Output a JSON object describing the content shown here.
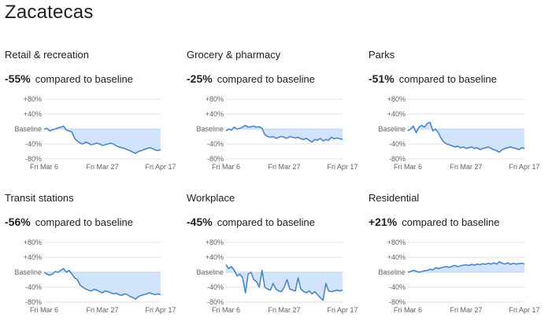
{
  "page_title": "Zacatecas",
  "compare_text": "compared to baseline",
  "colors": {
    "line": "#4a86c8",
    "fill": "#d2e3fc",
    "grid": "#e0e0e0",
    "text": "#202124",
    "axis_text": "#5f6368"
  },
  "chart_data": [
    {
      "type": "area",
      "title": "Retail & recreation",
      "change": "-55%",
      "ytick_labels": [
        "+80%",
        "+40%",
        "Baseline",
        "-40%",
        "-80%"
      ],
      "ylim": [
        -80,
        80
      ],
      "xtick_labels": [
        "Fri Mar 6",
        "Fri Mar 27",
        "Fri Apr 17"
      ],
      "xlim": [
        0,
        42
      ],
      "series": [
        {
          "values": [
            0,
            2,
            -5,
            -2,
            0,
            3,
            5,
            8,
            -3,
            -5,
            -8,
            -25,
            -32,
            -38,
            -40,
            -35,
            -38,
            -42,
            -40,
            -38,
            -40,
            -44,
            -42,
            -40,
            -38,
            -40,
            -45,
            -48,
            -50,
            -52,
            -55,
            -58,
            -62,
            -65,
            -60,
            -58,
            -55,
            -52,
            -50,
            -52,
            -56,
            -58,
            -55
          ]
        }
      ]
    },
    {
      "type": "area",
      "title": "Grocery & pharmacy",
      "change": "-25%",
      "ytick_labels": [
        "+80%",
        "+40%",
        "Baseline",
        "-40%",
        "-80%"
      ],
      "ylim": [
        -80,
        80
      ],
      "xtick_labels": [
        "Fri Mar 6",
        "Fri Mar 27",
        "Fri Apr 17"
      ],
      "xlim": [
        0,
        42
      ],
      "series": [
        {
          "values": [
            -5,
            0,
            -3,
            5,
            0,
            2,
            5,
            10,
            5,
            6,
            8,
            5,
            6,
            2,
            -15,
            -20,
            -22,
            -20,
            -25,
            -22,
            -20,
            -22,
            -25,
            -20,
            -22,
            -24,
            -22,
            -26,
            -28,
            -25,
            -30,
            -35,
            -28,
            -30,
            -25,
            -32,
            -28,
            -30,
            -22,
            -26,
            -24,
            -26,
            -28
          ]
        }
      ]
    },
    {
      "type": "area",
      "title": "Parks",
      "change": "-51%",
      "ytick_labels": [
        "+80%",
        "+40%",
        "Baseline",
        "-40%",
        "-80%"
      ],
      "ylim": [
        -80,
        80
      ],
      "xtick_labels": [
        "Fri Mar 6",
        "Fri Mar 27",
        "Fri Apr 17"
      ],
      "xlim": [
        0,
        42
      ],
      "series": [
        {
          "values": [
            -5,
            0,
            8,
            -10,
            5,
            10,
            5,
            15,
            18,
            -5,
            0,
            -10,
            -25,
            -35,
            -40,
            -42,
            -45,
            -48,
            -46,
            -50,
            -48,
            -52,
            -50,
            -48,
            -52,
            -50,
            -55,
            -52,
            -50,
            -48,
            -52,
            -55,
            -58,
            -62,
            -55,
            -52,
            -50,
            -48,
            -50,
            -52,
            -55,
            -50,
            -52
          ]
        }
      ]
    },
    {
      "type": "area",
      "title": "Transit stations",
      "change": "-56%",
      "ytick_labels": [
        "+80%",
        "+40%",
        "Baseline",
        "-40%",
        "-80%"
      ],
      "ylim": [
        -80,
        80
      ],
      "xtick_labels": [
        "Fri Mar 6",
        "Fri Mar 27",
        "Fri Apr 17"
      ],
      "xlim": [
        0,
        42
      ],
      "series": [
        {
          "values": [
            0,
            -5,
            -8,
            -5,
            2,
            0,
            5,
            10,
            0,
            5,
            -5,
            -15,
            -20,
            -35,
            -40,
            -45,
            -48,
            -50,
            -46,
            -48,
            -52,
            -55,
            -50,
            -52,
            -55,
            -58,
            -56,
            -60,
            -62,
            -58,
            -60,
            -65,
            -68,
            -72,
            -65,
            -62,
            -60,
            -58,
            -55,
            -58,
            -60,
            -58,
            -60
          ]
        }
      ]
    },
    {
      "type": "area",
      "title": "Workplace",
      "change": "-45%",
      "ytick_labels": [
        "+80%",
        "+40%",
        "Baseline",
        "-40%",
        "-80%"
      ],
      "ylim": [
        -80,
        80
      ],
      "xtick_labels": [
        "Fri Mar 6",
        "Fri Mar 27",
        "Fri Apr 17"
      ],
      "xlim": [
        0,
        42
      ],
      "series": [
        {
          "values": [
            20,
            10,
            15,
            5,
            -10,
            -5,
            -15,
            -55,
            -5,
            0,
            -20,
            -25,
            -40,
            5,
            -40,
            -45,
            -48,
            -30,
            -45,
            -50,
            -52,
            -40,
            -20,
            -45,
            -48,
            -50,
            -15,
            -45,
            -52,
            -55,
            -50,
            -58,
            -52,
            -60,
            -68,
            -75,
            -30,
            -50,
            -52,
            -50,
            -48,
            -50,
            -48
          ]
        }
      ]
    },
    {
      "type": "area",
      "title": "Residential",
      "change": "+21%",
      "ytick_labels": [
        "+80%",
        "+40%",
        "Baseline",
        "-40%",
        "-80%"
      ],
      "ylim": [
        -80,
        80
      ],
      "xtick_labels": [
        "Fri Mar 6",
        "Fri Mar 27",
        "Fri Apr 17"
      ],
      "xlim": [
        0,
        42
      ],
      "series": [
        {
          "values": [
            0,
            2,
            5,
            3,
            0,
            2,
            4,
            5,
            8,
            6,
            12,
            10,
            12,
            14,
            15,
            13,
            16,
            18,
            15,
            17,
            19,
            20,
            18,
            21,
            19,
            22,
            20,
            23,
            21,
            24,
            22,
            25,
            22,
            28,
            24,
            22,
            25,
            21,
            24,
            22,
            23,
            24,
            22
          ]
        }
      ]
    }
  ]
}
